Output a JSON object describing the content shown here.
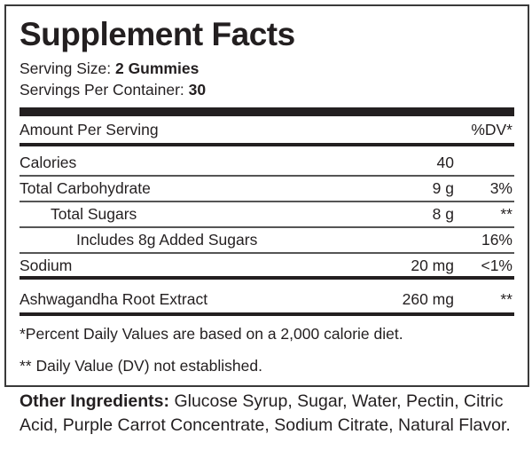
{
  "title": "Supplement Facts",
  "serving_size": {
    "label": "Serving Size: ",
    "value": "2 Gummies"
  },
  "servings_per_container": {
    "label": "Servings Per Container: ",
    "value": "30"
  },
  "header": {
    "amount": "Amount Per Serving",
    "dv": "%DV*"
  },
  "rows": [
    {
      "name": "Calories",
      "amount": "40",
      "dv": ""
    },
    {
      "name": "Total Carbohydrate",
      "amount": "9 g",
      "dv": "3%"
    },
    {
      "name": "Total Sugars",
      "amount": "8 g",
      "dv": "**"
    },
    {
      "name": "Includes 8g Added Sugars",
      "amount": "",
      "dv": "16%"
    },
    {
      "name": "Sodium",
      "amount": "20 mg",
      "dv": "<1%"
    },
    {
      "name": "Ashwagandha Root Extract",
      "amount": "260 mg",
      "dv": "**"
    }
  ],
  "footnotes": [
    "*Percent Daily Values are based on a 2,000 calorie diet.",
    "** Daily Value (DV) not established."
  ],
  "other_ingredients": {
    "label": "Other Ingredients:",
    "text": " Glucose Syrup, Sugar, Water, Pectin, Citric Acid, Purple Carrot Concentrate, Sodium Citrate, Natural Flavor."
  }
}
